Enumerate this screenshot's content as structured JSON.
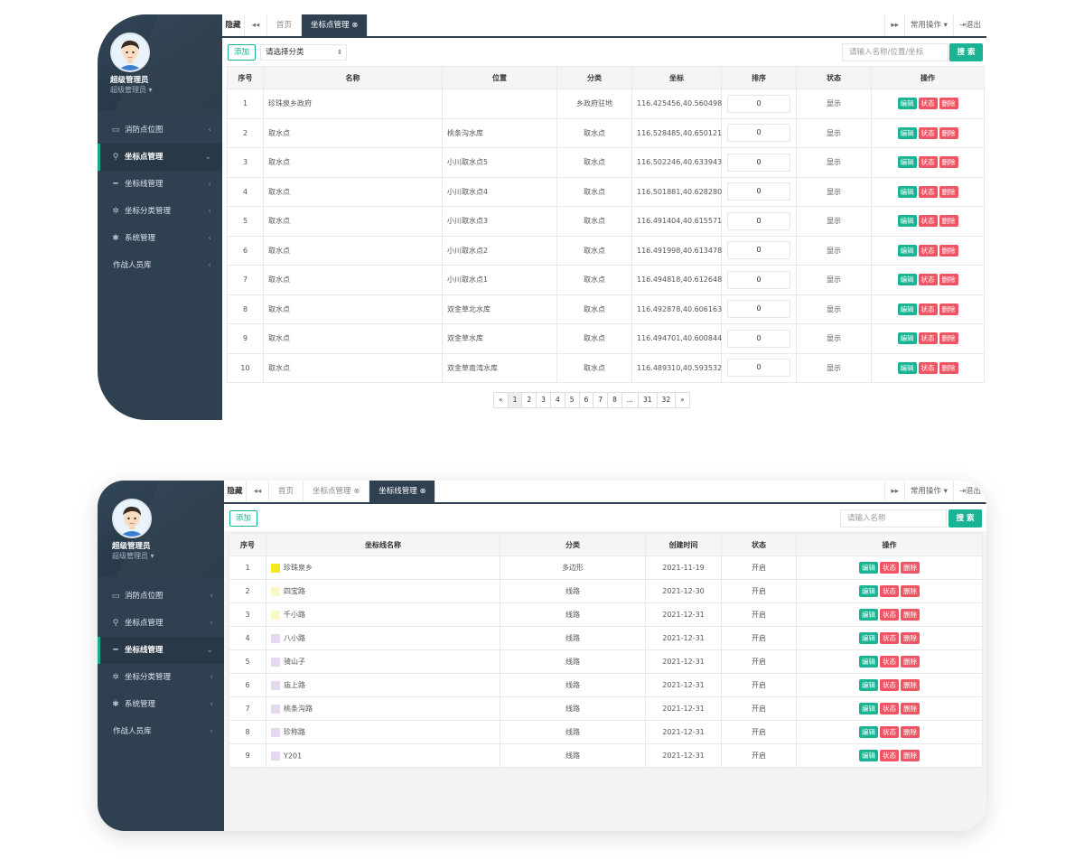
{
  "top": {
    "profile": {
      "name": "超级管理员",
      "role": "超级管理员"
    },
    "menu": [
      {
        "icon": "▭",
        "label": "消防点位图",
        "arrow": "‹"
      },
      {
        "icon": "⚲",
        "label": "坐标点管理",
        "arrow": "⌄"
      },
      {
        "icon": "━",
        "label": "坐标线管理",
        "arrow": "‹"
      },
      {
        "icon": "✲",
        "label": "坐标分类管理",
        "arrow": "‹"
      },
      {
        "icon": "✱",
        "label": "系统管理",
        "arrow": "‹"
      },
      {
        "icon": "",
        "label": "作战人员库",
        "arrow": "‹"
      }
    ],
    "tabbar": {
      "hide": "隐藏",
      "back": "◂◂",
      "forward": "▸▸",
      "tabs": [
        {
          "label": "首页"
        },
        {
          "label": "坐标点管理",
          "close": "⊗"
        }
      ],
      "ops": "常用操作 ▾",
      "exit": "⇥退出"
    },
    "toolbar": {
      "add": "添加",
      "category": "请选择分类",
      "search_placeholder": "请输入名称/位置/坐标",
      "search": "搜 索"
    },
    "columns": [
      "序号",
      "名称",
      "位置",
      "分类",
      "坐标",
      "排序",
      "状态",
      "操作"
    ],
    "rows": [
      {
        "no": "1",
        "name": "珍珠泉乡政府",
        "loc": "",
        "cat": "乡政府驻地",
        "coord": "116.425456,40.560498",
        "sort": "0",
        "status": "显示"
      },
      {
        "no": "2",
        "name": "取水点",
        "loc": "桃条沟水库",
        "cat": "取水点",
        "coord": "116.528485,40.650121",
        "sort": "0",
        "status": "显示"
      },
      {
        "no": "3",
        "name": "取水点",
        "loc": "小川取水点5",
        "cat": "取水点",
        "coord": "116.502246,40.633943",
        "sort": "0",
        "status": "显示"
      },
      {
        "no": "4",
        "name": "取水点",
        "loc": "小川取水点4",
        "cat": "取水点",
        "coord": "116.501881,40.628280",
        "sort": "0",
        "status": "显示"
      },
      {
        "no": "5",
        "name": "取水点",
        "loc": "小川取水点3",
        "cat": "取水点",
        "coord": "116.491404,40.615571",
        "sort": "0",
        "status": "显示"
      },
      {
        "no": "6",
        "name": "取水点",
        "loc": "小川取水点2",
        "cat": "取水点",
        "coord": "116.491998,40.613478",
        "sort": "0",
        "status": "显示"
      },
      {
        "no": "7",
        "name": "取水点",
        "loc": "小川取水点1",
        "cat": "取水点",
        "coord": "116.494818,40.612648",
        "sort": "0",
        "status": "显示"
      },
      {
        "no": "8",
        "name": "取水点",
        "loc": "双金草北水库",
        "cat": "取水点",
        "coord": "116.492878,40.606163",
        "sort": "0",
        "status": "显示"
      },
      {
        "no": "9",
        "name": "取水点",
        "loc": "双金草水库",
        "cat": "取水点",
        "coord": "116.494701,40.600844",
        "sort": "0",
        "status": "显示"
      },
      {
        "no": "10",
        "name": "取水点",
        "loc": "双金草南湾水库",
        "cat": "取水点",
        "coord": "116.489310,40.593532",
        "sort": "0",
        "status": "显示"
      }
    ],
    "ops": {
      "edit": "编辑",
      "state": "状态",
      "delete": "删除"
    },
    "pager": [
      "«",
      "1",
      "2",
      "3",
      "4",
      "5",
      "6",
      "7",
      "8",
      "...",
      "31",
      "32",
      "»"
    ]
  },
  "bottom": {
    "profile": {
      "name": "超级管理员",
      "role": "超级管理员"
    },
    "menu": [
      {
        "icon": "▭",
        "label": "消防点位图",
        "arrow": "‹"
      },
      {
        "icon": "⚲",
        "label": "坐标点管理",
        "arrow": "‹"
      },
      {
        "icon": "━",
        "label": "坐标线管理",
        "arrow": "⌄"
      },
      {
        "icon": "✲",
        "label": "坐标分类管理",
        "arrow": "‹"
      },
      {
        "icon": "✱",
        "label": "系统管理",
        "arrow": "‹"
      },
      {
        "icon": "",
        "label": "作战人员库",
        "arrow": "‹"
      }
    ],
    "tabbar": {
      "hide": "隐藏",
      "back": "◂◂",
      "forward": "▸▸",
      "tabs": [
        {
          "label": "首页"
        },
        {
          "label": "坐标点管理",
          "close": "⊗"
        },
        {
          "label": "坐标线管理",
          "close": "⊗"
        }
      ],
      "ops": "常用操作 ▾",
      "exit": "⇥退出"
    },
    "toolbar": {
      "add": "添加",
      "search_placeholder": "请输入名称",
      "search": "搜 索"
    },
    "columns": [
      "序号",
      "坐标线名称",
      "分类",
      "创建时间",
      "状态",
      "操作"
    ],
    "rows": [
      {
        "no": "1",
        "name": "珍珠泉乡",
        "color": "#f5e81c",
        "cat": "多边形",
        "date": "2021-11-19",
        "status": "开启"
      },
      {
        "no": "2",
        "name": "四宝路",
        "color": "#fbf7c9",
        "cat": "线路",
        "date": "2021-12-30",
        "status": "开启"
      },
      {
        "no": "3",
        "name": "千小路",
        "color": "#fbf9c6",
        "cat": "线路",
        "date": "2021-12-31",
        "status": "开启"
      },
      {
        "no": "4",
        "name": "八小路",
        "color": "#e6d9ef",
        "cat": "线路",
        "date": "2021-12-31",
        "status": "开启"
      },
      {
        "no": "5",
        "name": "骑山子",
        "color": "#e6d9ef",
        "cat": "线路",
        "date": "2021-12-31",
        "status": "开启"
      },
      {
        "no": "6",
        "name": "庙上路",
        "color": "#e6d9ef",
        "cat": "线路",
        "date": "2021-12-31",
        "status": "开启"
      },
      {
        "no": "7",
        "name": "桃条沟路",
        "color": "#e6d9ef",
        "cat": "线路",
        "date": "2021-12-31",
        "status": "开启"
      },
      {
        "no": "8",
        "name": "珍称路",
        "color": "#e6d9ef",
        "cat": "线路",
        "date": "2021-12-31",
        "status": "开启"
      },
      {
        "no": "9",
        "name": "Y201",
        "color": "#e6d9ef",
        "cat": "线路",
        "date": "2021-12-31",
        "status": "开启"
      }
    ],
    "ops": {
      "edit": "编辑",
      "state": "状态",
      "delete": "删除"
    }
  }
}
